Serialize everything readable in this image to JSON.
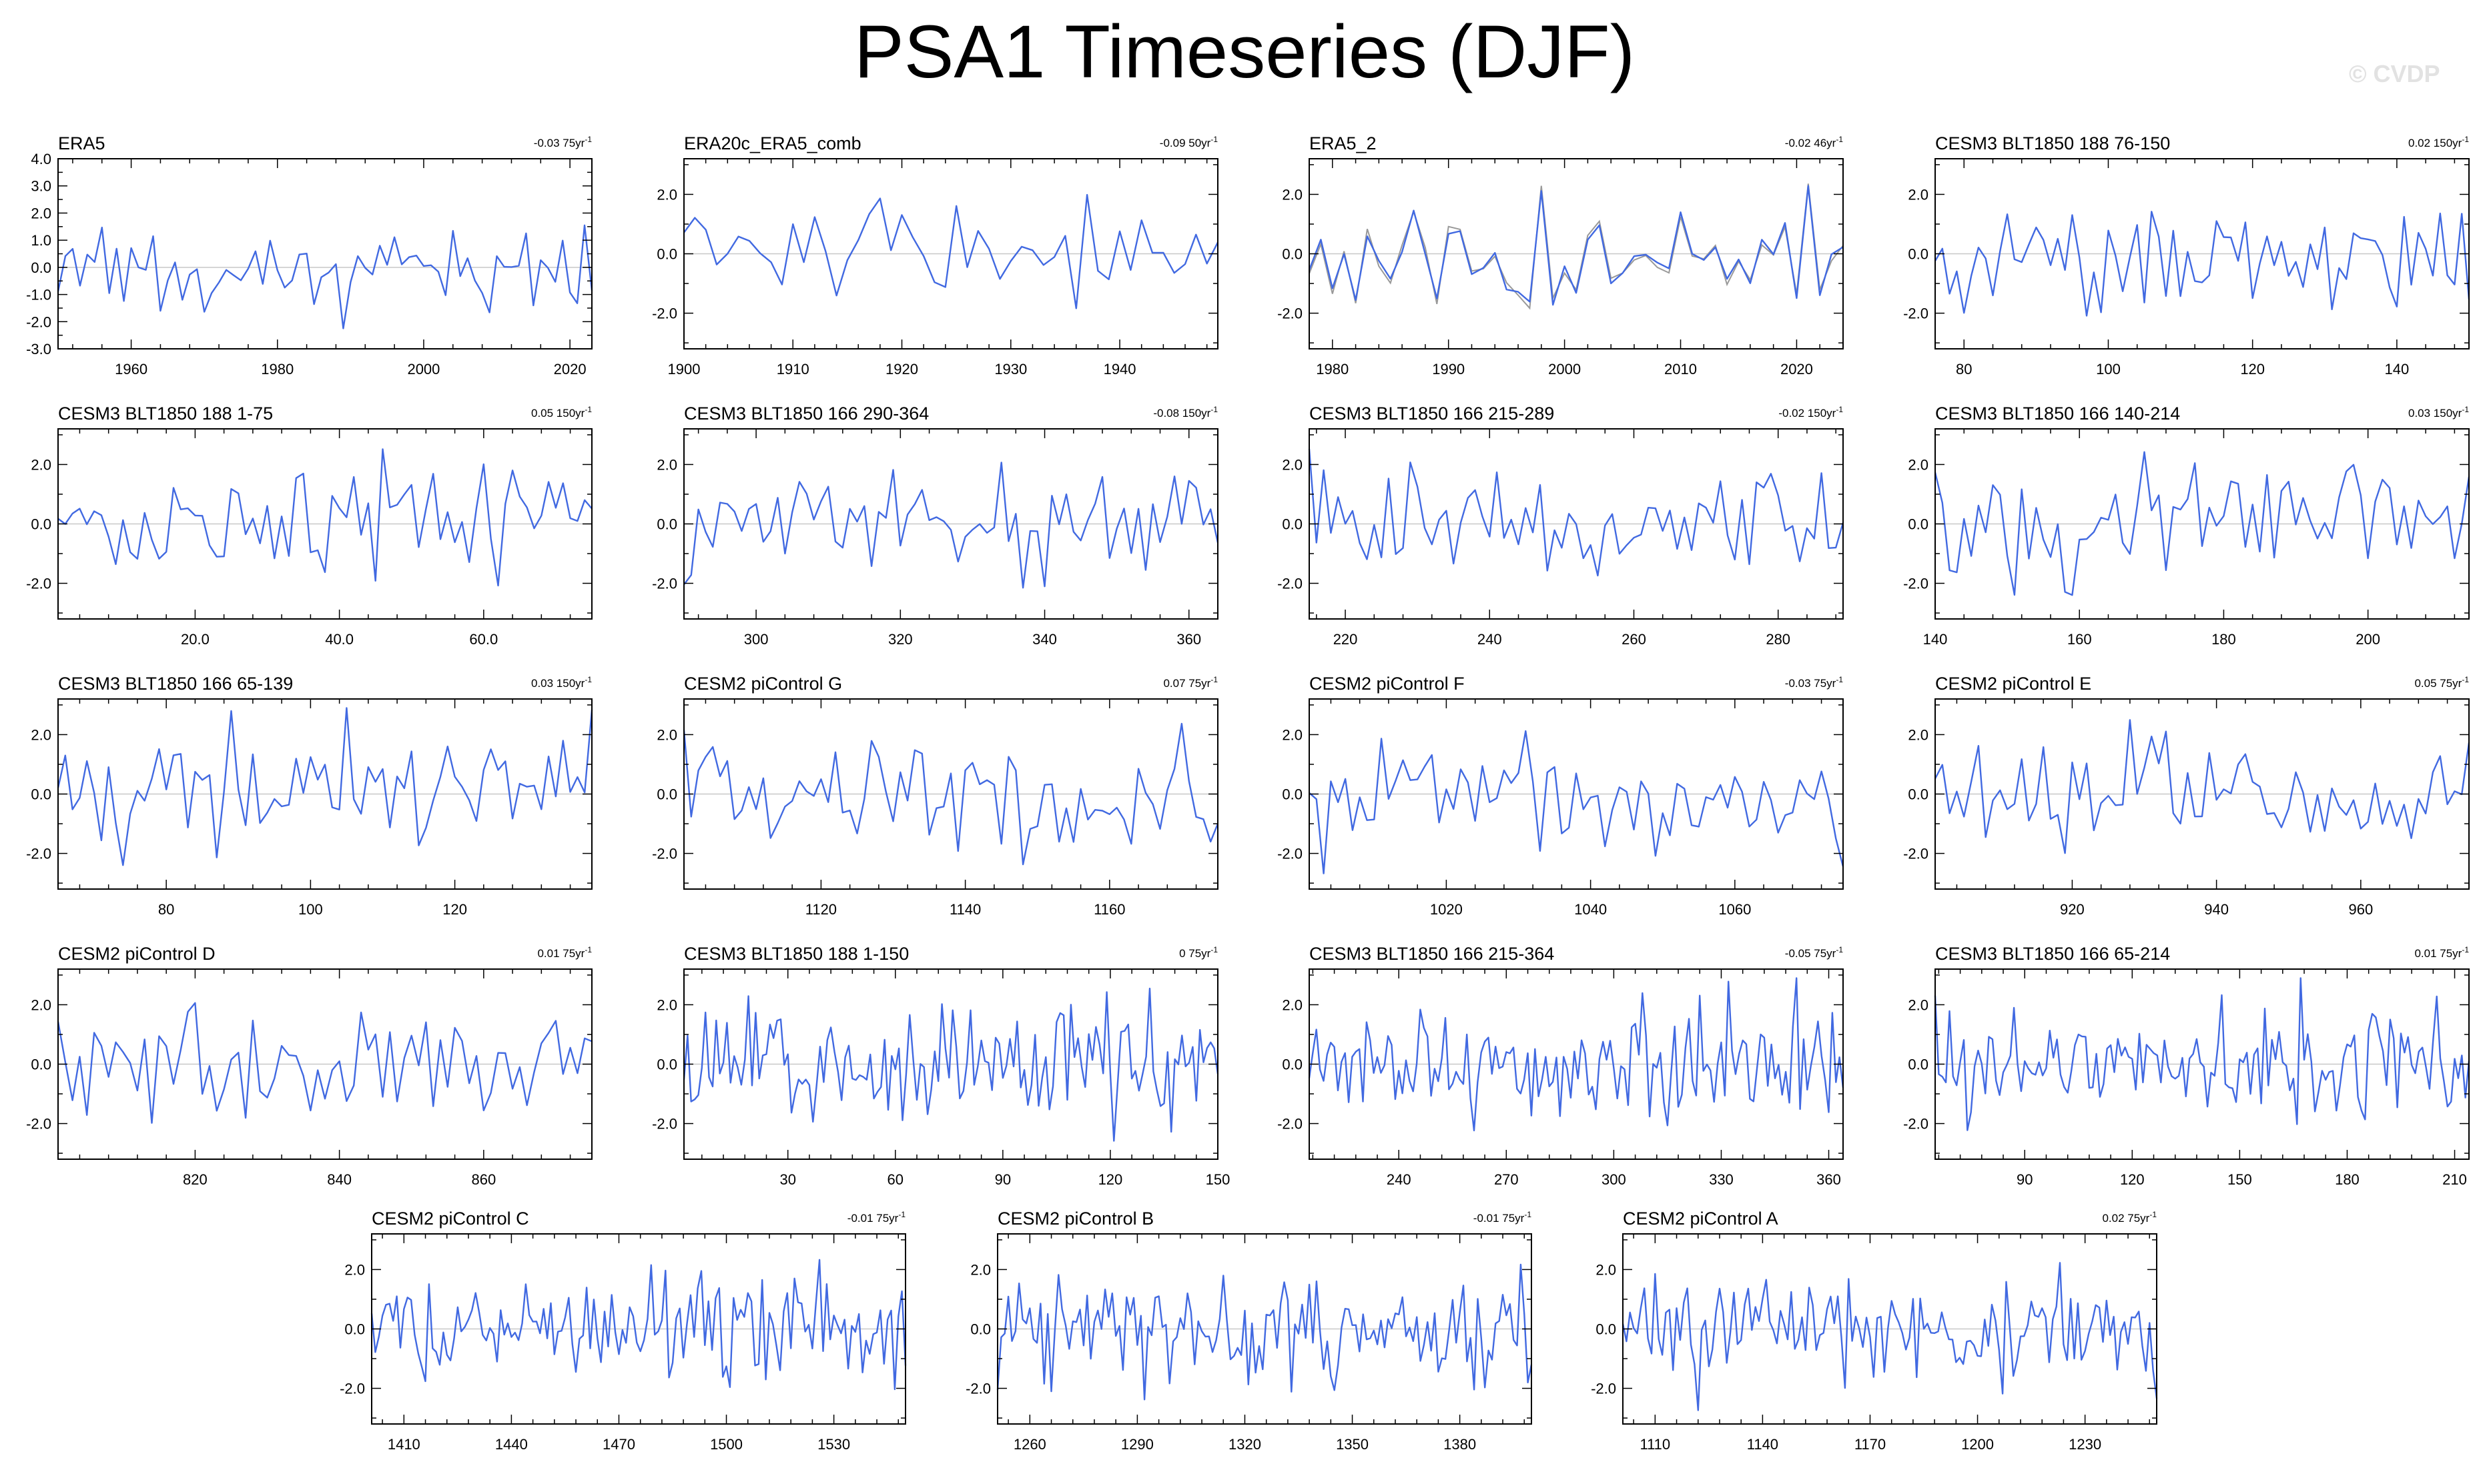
{
  "title": "PSA1 Timeseries (DJF)",
  "watermark": "© CVDP",
  "chart_data": [
    {
      "type": "line",
      "title": "ERA5",
      "trend": "-0.03",
      "trend_unit": "75yr",
      "x_start": 1950,
      "x_end": 2023,
      "xticks": [
        1960,
        1980,
        2000,
        2020
      ],
      "yticks": [
        4.0,
        3.0,
        2.0,
        1.0,
        0.0,
        -1.0,
        -2.0,
        -3.0
      ],
      "ylim": [
        -3.0,
        4.0
      ],
      "overlay": false
    },
    {
      "type": "line",
      "title": "ERA20c_ERA5_comb",
      "trend": "-0.09",
      "trend_unit": "50yr",
      "x_start": 1900,
      "x_end": 1949,
      "xticks": [
        1900,
        1910,
        1920,
        1930,
        1940
      ],
      "yticks": [
        2.0,
        0.0,
        -2.0
      ],
      "ylim": [
        -3.2,
        3.2
      ],
      "overlay": false
    },
    {
      "type": "line",
      "title": "ERA5_2",
      "trend": "-0.02",
      "trend_unit": "46yr",
      "x_start": 1978,
      "x_end": 2024,
      "xticks": [
        1980,
        1990,
        2000,
        2010,
        2020
      ],
      "yticks": [
        2.0,
        0.0,
        -2.0
      ],
      "ylim": [
        -3.2,
        3.2
      ],
      "overlay": true
    },
    {
      "type": "line",
      "title": "CESM3 BLT1850 188 76-150",
      "trend": "0.02",
      "trend_unit": "150yr",
      "x_start": 76,
      "x_end": 150,
      "xticks": [
        80,
        100,
        120,
        140
      ],
      "yticks": [
        2.0,
        0.0,
        -2.0
      ],
      "ylim": [
        -3.2,
        3.2
      ],
      "overlay": false
    },
    {
      "type": "line",
      "title": "CESM3 BLT1850 188 1-75",
      "trend": "0.05",
      "trend_unit": "150yr",
      "x_start": 1,
      "x_end": 75,
      "xticks": [
        20,
        40,
        60
      ],
      "xtick_labels": [
        "20.0",
        "40.0",
        "60.0"
      ],
      "yticks": [
        2.0,
        0.0,
        -2.0
      ],
      "ylim": [
        -3.2,
        3.2
      ],
      "overlay": false
    },
    {
      "type": "line",
      "title": "CESM3 BLT1850 166 290-364",
      "trend": "-0.08",
      "trend_unit": "150yr",
      "x_start": 290,
      "x_end": 364,
      "xticks": [
        300,
        320,
        340,
        360
      ],
      "yticks": [
        2.0,
        0.0,
        -2.0
      ],
      "ylim": [
        -3.2,
        3.2
      ],
      "overlay": false
    },
    {
      "type": "line",
      "title": "CESM3 BLT1850 166 215-289",
      "trend": "-0.02",
      "trend_unit": "150yr",
      "x_start": 215,
      "x_end": 289,
      "xticks": [
        220,
        240,
        260,
        280
      ],
      "yticks": [
        2.0,
        0.0,
        -2.0
      ],
      "ylim": [
        -3.2,
        3.2
      ],
      "overlay": false
    },
    {
      "type": "line",
      "title": "CESM3 BLT1850 166 140-214",
      "trend": "0.03",
      "trend_unit": "150yr",
      "x_start": 140,
      "x_end": 214,
      "xticks": [
        140,
        160,
        180,
        200
      ],
      "yticks": [
        2.0,
        0.0,
        -2.0
      ],
      "ylim": [
        -3.2,
        3.2
      ],
      "overlay": false
    },
    {
      "type": "line",
      "title": "CESM3 BLT1850 166 65-139",
      "trend": "0.03",
      "trend_unit": "150yr",
      "x_start": 65,
      "x_end": 139,
      "xticks": [
        80,
        100,
        120
      ],
      "yticks": [
        2.0,
        0.0,
        -2.0
      ],
      "ylim": [
        -3.2,
        3.2
      ],
      "overlay": false
    },
    {
      "type": "line",
      "title": "CESM2 piControl G",
      "trend": "0.07",
      "trend_unit": "75yr",
      "x_start": 1101,
      "x_end": 1175,
      "xticks": [
        1120,
        1140,
        1160
      ],
      "yticks": [
        2.0,
        0.0,
        -2.0
      ],
      "ylim": [
        -3.2,
        3.2
      ],
      "overlay": false
    },
    {
      "type": "line",
      "title": "CESM2 piControl F",
      "trend": "-0.03",
      "trend_unit": "75yr",
      "x_start": 1001,
      "x_end": 1075,
      "xticks": [
        1020,
        1040,
        1060
      ],
      "yticks": [
        2.0,
        0.0,
        -2.0
      ],
      "ylim": [
        -3.2,
        3.2
      ],
      "overlay": false
    },
    {
      "type": "line",
      "title": "CESM2 piControl E",
      "trend": "0.05",
      "trend_unit": "75yr",
      "x_start": 901,
      "x_end": 975,
      "xticks": [
        920,
        940,
        960
      ],
      "yticks": [
        2.0,
        0.0,
        -2.0
      ],
      "ylim": [
        -3.2,
        3.2
      ],
      "overlay": false
    },
    {
      "type": "line",
      "title": "CESM2 piControl D",
      "trend": "0.01",
      "trend_unit": "75yr",
      "x_start": 801,
      "x_end": 875,
      "xticks": [
        820,
        840,
        860
      ],
      "yticks": [
        2.0,
        0.0,
        -2.0
      ],
      "ylim": [
        -3.2,
        3.2
      ],
      "overlay": false
    },
    {
      "type": "line",
      "title": "CESM3 BLT1850 188 1-150",
      "trend": "0",
      "trend_unit": "75yr",
      "x_start": 1,
      "x_end": 150,
      "xticks": [
        30,
        60,
        90,
        120,
        150
      ],
      "yticks": [
        2.0,
        0.0,
        -2.0
      ],
      "ylim": [
        -3.2,
        3.2
      ],
      "overlay": false
    },
    {
      "type": "line",
      "title": "CESM3 BLT1850 166 215-364",
      "trend": "-0.05",
      "trend_unit": "75yr",
      "x_start": 215,
      "x_end": 364,
      "xticks": [
        240,
        270,
        300,
        330,
        360
      ],
      "yticks": [
        2.0,
        0.0,
        -2.0
      ],
      "ylim": [
        -3.2,
        3.2
      ],
      "overlay": false
    },
    {
      "type": "line",
      "title": "CESM3 BLT1850 166 65-214",
      "trend": "0.01",
      "trend_unit": "75yr",
      "x_start": 65,
      "x_end": 214,
      "xticks": [
        90,
        120,
        150,
        180,
        210
      ],
      "yticks": [
        2.0,
        0.0,
        -2.0
      ],
      "ylim": [
        -3.2,
        3.2
      ],
      "overlay": false
    },
    {
      "type": "line",
      "title": "CESM2 piControl C",
      "trend": "-0.01",
      "trend_unit": "75yr",
      "x_start": 1401,
      "x_end": 1550,
      "xticks": [
        1410,
        1440,
        1470,
        1500,
        1530
      ],
      "yticks": [
        2.0,
        0.0,
        -2.0
      ],
      "ylim": [
        -3.2,
        3.2
      ],
      "overlay": false
    },
    {
      "type": "line",
      "title": "CESM2 piControl B",
      "trend": "-0.01",
      "trend_unit": "75yr",
      "x_start": 1251,
      "x_end": 1400,
      "xticks": [
        1260,
        1290,
        1320,
        1350,
        1380
      ],
      "yticks": [
        2.0,
        0.0,
        -2.0
      ],
      "ylim": [
        -3.2,
        3.2
      ],
      "overlay": false
    },
    {
      "type": "line",
      "title": "CESM2 piControl A",
      "trend": "0.02",
      "trend_unit": "75yr",
      "x_start": 1101,
      "x_end": 1250,
      "xticks": [
        1110,
        1140,
        1170,
        1200,
        1230
      ],
      "yticks": [
        2.0,
        0.0,
        -2.0
      ],
      "ylim": [
        -3.2,
        3.2
      ],
      "overlay": false
    }
  ],
  "colors": {
    "series": "#4169e1",
    "overlay": "#999999",
    "zero_line": "#c8c8c8",
    "axis": "#000000"
  }
}
